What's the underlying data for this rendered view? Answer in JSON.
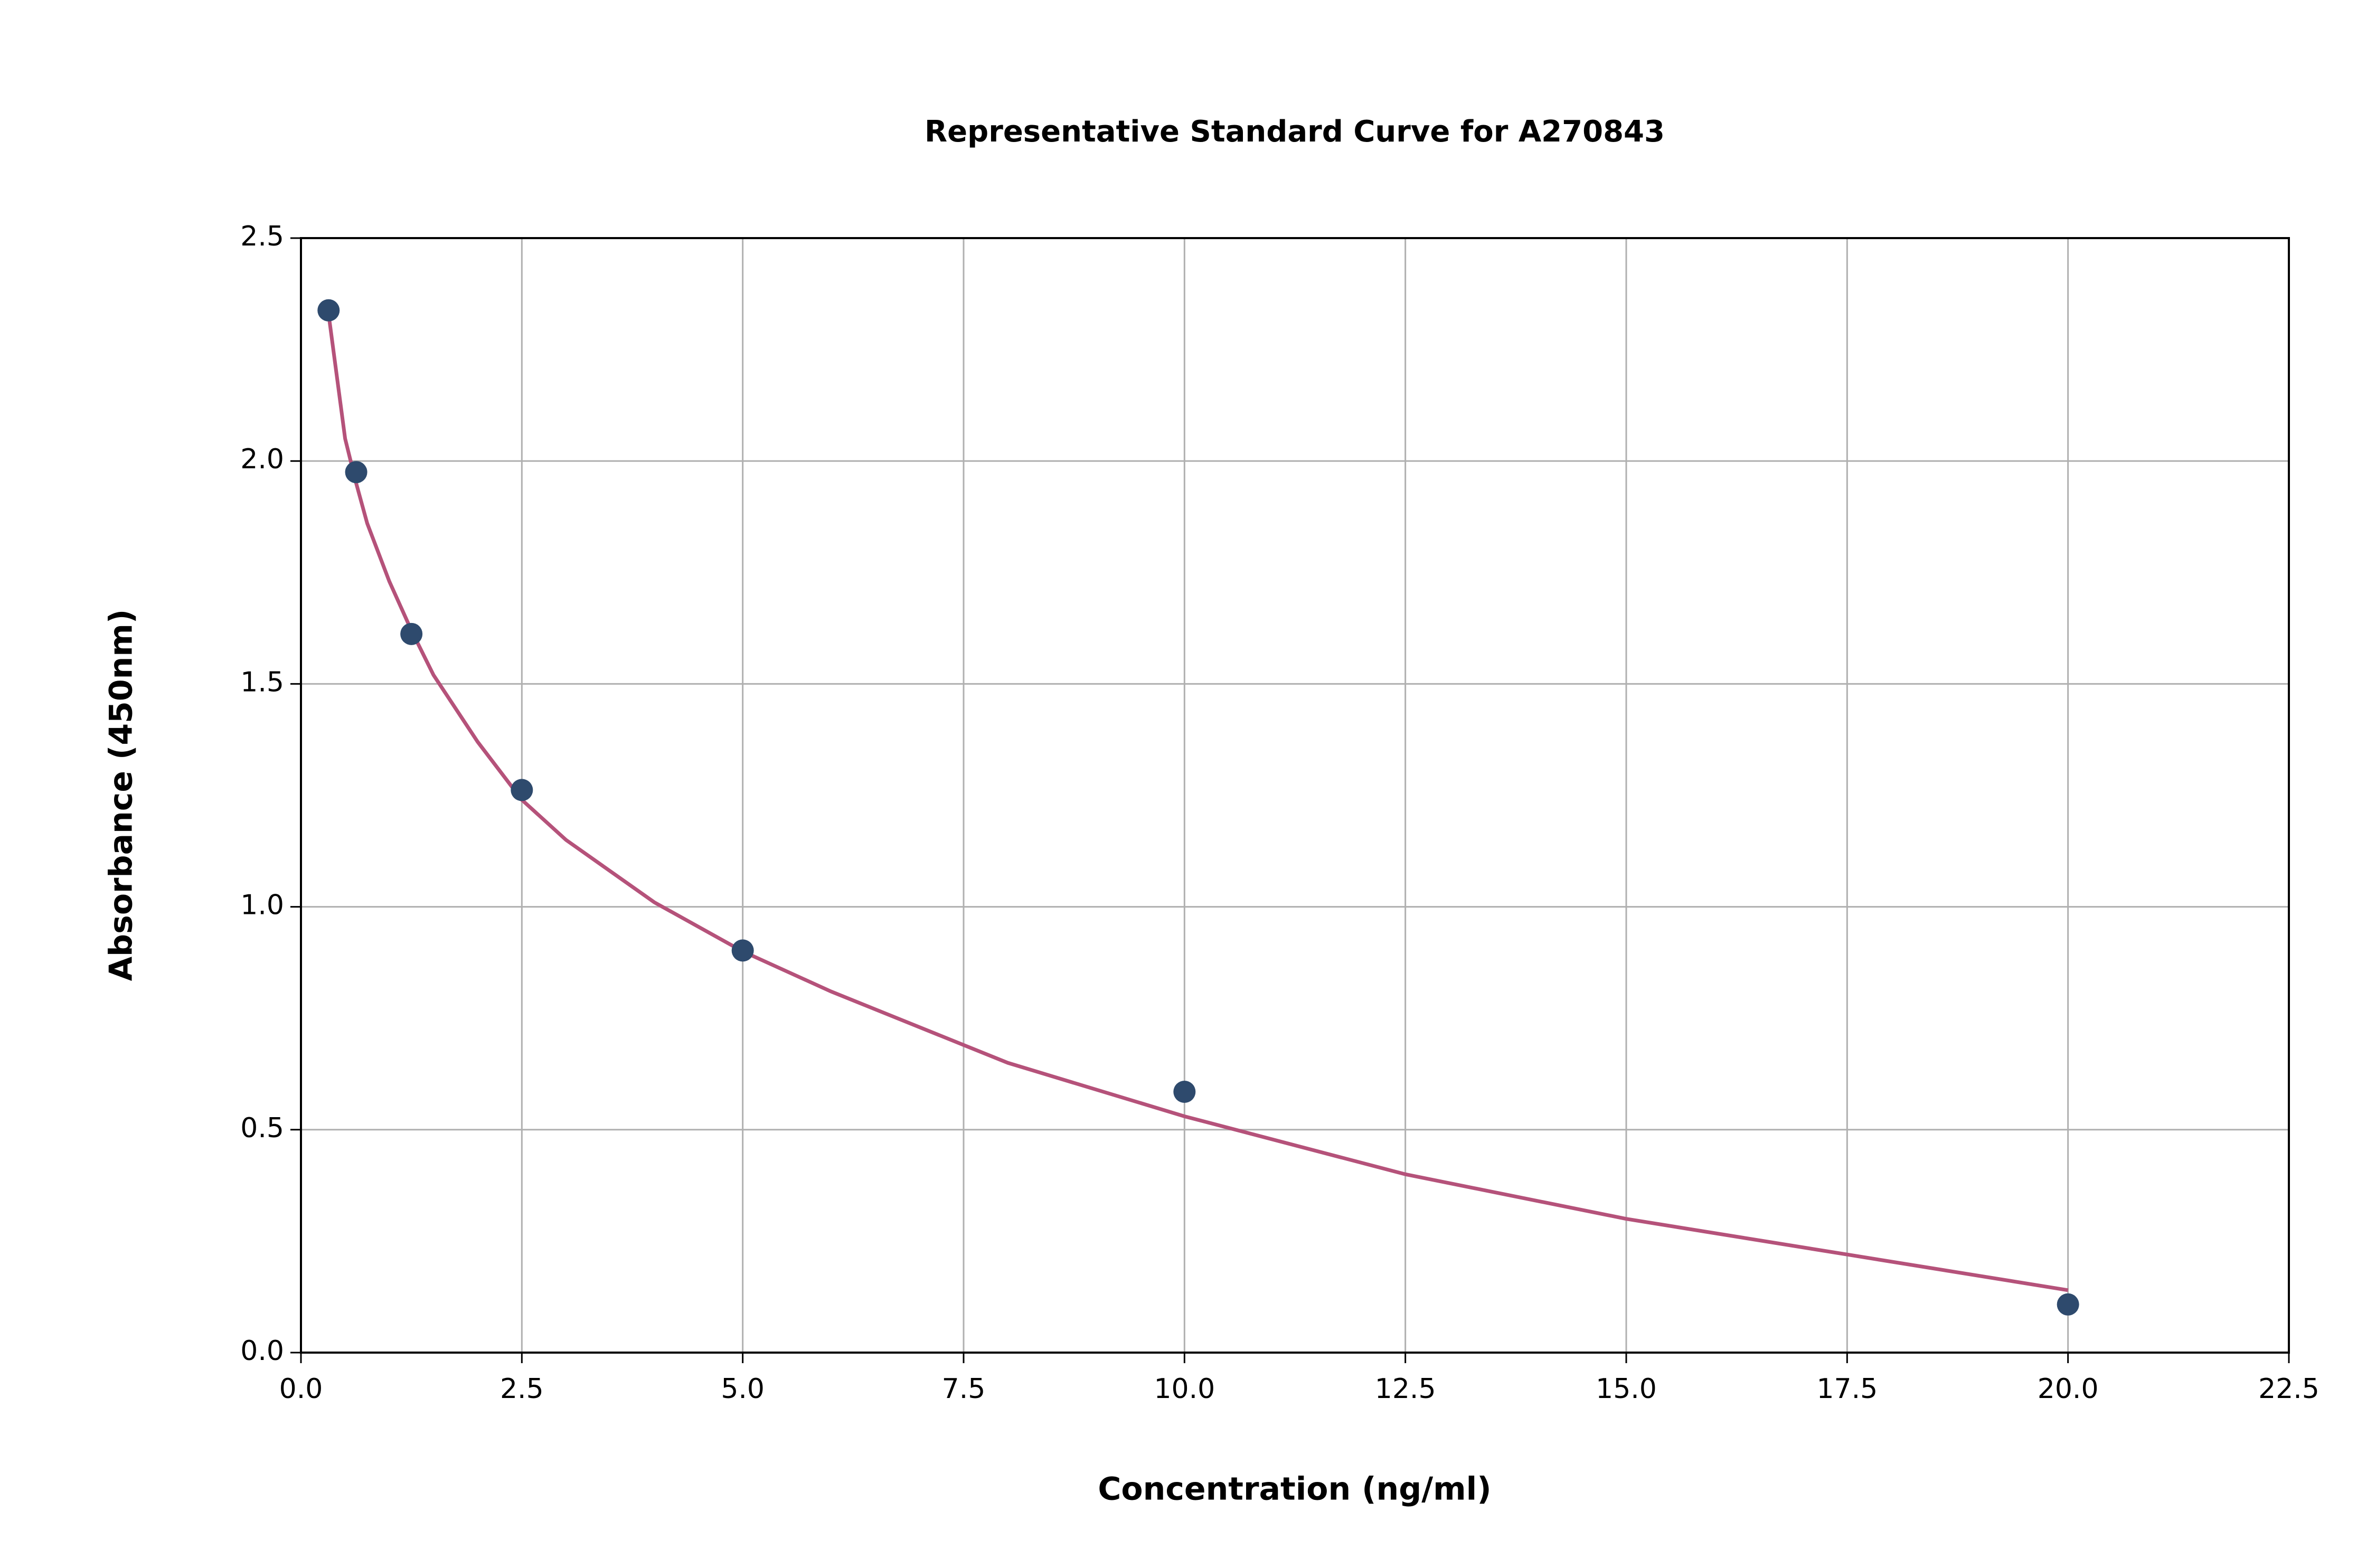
{
  "chart_data": {
    "type": "scatter",
    "title": "Representative Standard Curve for A270843",
    "x_label": "Concentration (ng/ml)",
    "y_label": "Absorbance (450nm)",
    "xlim": [
      0,
      22.5
    ],
    "ylim": [
      0,
      2.5
    ],
    "xticks": [
      {
        "value": 0,
        "label": "0.0"
      },
      2.5,
      {
        "value": 5,
        "label": "5.0"
      },
      7.5,
      {
        "value": 10,
        "label": "10.0"
      },
      12.5,
      {
        "value": 15,
        "label": "15.0"
      },
      17.5,
      {
        "value": 20,
        "label": "20.0"
      },
      22.5
    ],
    "yticks": [
      {
        "value": 0,
        "label": "0.0"
      },
      0.5,
      {
        "value": 1,
        "label": "1.0"
      },
      1.5,
      {
        "value": 2,
        "label": "2.0"
      },
      2.5
    ],
    "grid": true,
    "series": [
      {
        "type": "line",
        "color": "#b5527a",
        "x": [
          0.3125,
          0.5,
          0.625,
          0.75,
          1.0,
          1.25,
          1.5,
          2.0,
          2.5,
          3.0,
          4.0,
          5.0,
          6.0,
          7.5,
          8.0,
          10.0,
          12.5,
          15.0,
          17.5,
          20.0
        ],
        "values": [
          2.33,
          2.05,
          1.95,
          1.86,
          1.73,
          1.62,
          1.52,
          1.37,
          1.24,
          1.15,
          1.01,
          0.9,
          0.81,
          0.69,
          0.65,
          0.53,
          0.4,
          0.3,
          0.22,
          0.14
        ]
      },
      {
        "type": "scatter",
        "color": "#2e4a6d",
        "x": [
          0.3125,
          0.625,
          1.25,
          2.5,
          5,
          10,
          20
        ],
        "values": [
          2.338,
          1.975,
          1.612,
          1.262,
          0.902,
          0.585,
          0.108
        ]
      }
    ]
  }
}
